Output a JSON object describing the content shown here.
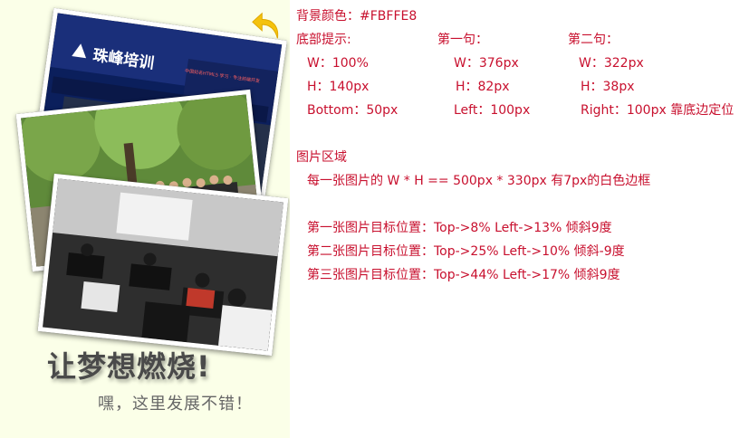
{
  "phone": {
    "background": "#FBFFE8",
    "back_icon": "curved-back-arrow-icon",
    "photos": [
      {
        "sign_text": "珠峰培训",
        "banner_text": "中国知名HTML5 学习  ·  专注前端开发"
      },
      {
        "description_hidden": ""
      },
      {
        "description_hidden": ""
      }
    ],
    "slogan": "让梦想燃烧!",
    "subline": "嘿，这里发展不错！"
  },
  "notes": {
    "bg_color": "背景颜色：#FBFFE8",
    "bottom_tip": {
      "label": "底部提示:",
      "w": "W：100%",
      "h": "H：140px",
      "bottom": "Bottom：50px"
    },
    "first_line": {
      "label": "第一句：",
      "w": "W：376px",
      "h": "H：82px",
      "left": "Left：100px"
    },
    "second_line": {
      "label": "第二句：",
      "w": "W：322px",
      "h": "H：38px",
      "right": "Right：100px  靠底边定位"
    },
    "image_area": {
      "label": "图片区域",
      "size": "每一张图片的 W * H == 500px * 330px   有7px的白色边框",
      "img1": "第一张图片目标位置：Top->8%   Left->13%     倾斜9度",
      "img2": "第二张图片目标位置：Top->25%   Left->10%   倾斜-9度",
      "img3": "第三张图片目标位置：Top->44%   Left->17%   倾斜9度"
    }
  }
}
